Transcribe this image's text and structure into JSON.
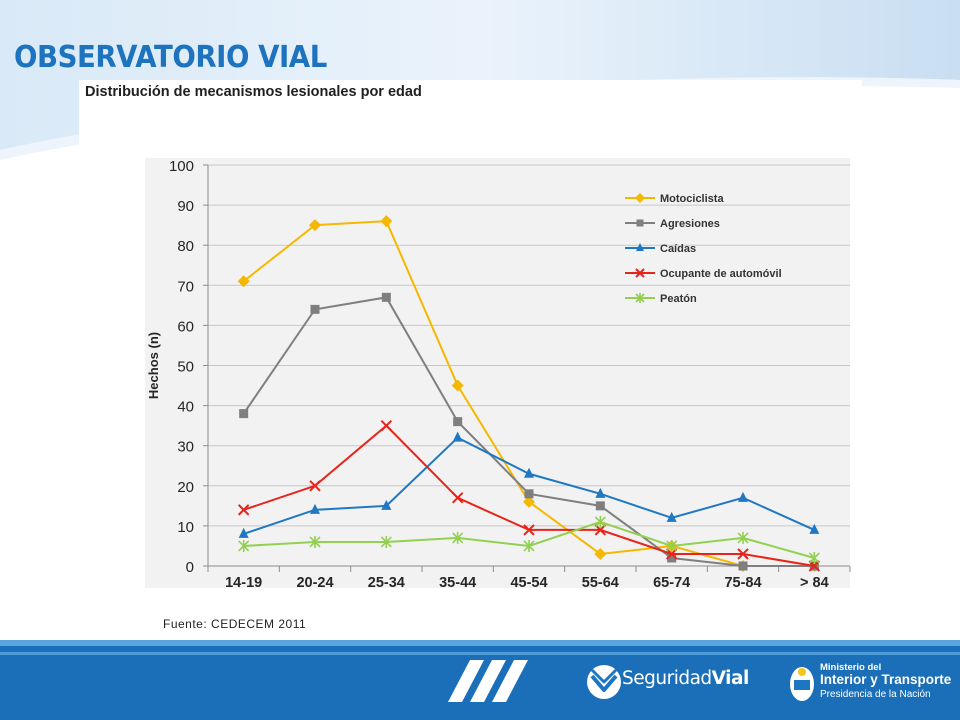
{
  "header": {
    "brand_title": "OBSERVATORIO VIAL"
  },
  "footer": {
    "source": "Fuente: CEDECEM  2011",
    "brand_prefix": "Seguridad",
    "brand_suffix": "Vial",
    "ministry_line1": "Ministerio del",
    "ministry_line2": "Interior y Transporte",
    "ministry_line3": "Presidencia de la Nación"
  },
  "colors": {
    "brand_blue": "#1e73be",
    "footer_blue": "#1d76c2"
  },
  "chart_data": {
    "type": "line",
    "title": "Distribución de mecanismos lesionales por edad",
    "xlabel": "",
    "ylabel": "Hechos (n)",
    "categories": [
      "14-19",
      "20-24",
      "25-34",
      "35-44",
      "45-54",
      "55-64",
      "65-74",
      "75-84",
      "> 84"
    ],
    "ylim": [
      0,
      100
    ],
    "yticks": [
      "0",
      "10",
      "20",
      "30",
      "40",
      "50",
      "60",
      "70",
      "80",
      "90",
      "100"
    ],
    "grid": true,
    "legend_position": "top-right",
    "series": [
      {
        "name": "Motociclista",
        "color": "#f5b800",
        "marker": "diamond",
        "values": [
          71,
          85,
          86,
          45,
          16,
          3,
          5,
          0,
          0
        ]
      },
      {
        "name": "Agresiones",
        "color": "#7f7f7f",
        "marker": "square",
        "values": [
          38,
          64,
          67,
          36,
          18,
          15,
          2,
          0,
          0
        ]
      },
      {
        "name": "Caídas",
        "color": "#1f78c1",
        "marker": "triangle",
        "values": [
          8,
          14,
          15,
          32,
          23,
          18,
          12,
          17,
          9
        ]
      },
      {
        "name": "Ocupante de automóvil",
        "color": "#e8231a",
        "marker": "x",
        "values": [
          14,
          20,
          35,
          17,
          9,
          9,
          3,
          3,
          0
        ]
      },
      {
        "name": "Peatón",
        "color": "#92d050",
        "marker": "star",
        "values": [
          5,
          6,
          6,
          7,
          5,
          11,
          5,
          7,
          2
        ]
      }
    ]
  }
}
